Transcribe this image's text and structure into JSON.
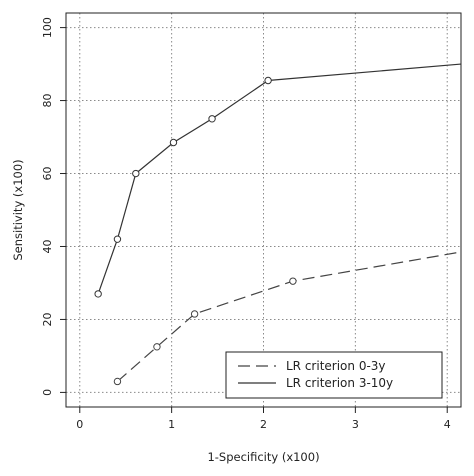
{
  "chart_data": {
    "type": "line",
    "title": "",
    "xlabel": "1-Specificity (x100)",
    "ylabel": "Sensitivity (x100)",
    "xlim": [
      -0.15,
      4.15
    ],
    "ylim": [
      -4,
      104
    ],
    "xticks": [
      0,
      1,
      2,
      3,
      4
    ],
    "xtick_labels": [
      "0",
      "1",
      "2",
      "3",
      "4"
    ],
    "yticks": [
      0,
      20,
      40,
      60,
      80,
      100
    ],
    "ytick_labels": [
      "0",
      "20",
      "40",
      "60",
      "80",
      "100"
    ],
    "grid": true,
    "legend_position": "bottom-right",
    "series": [
      {
        "name": "LR criterion 0-3y",
        "line_style": "dashed",
        "color": "#444444",
        "x": [
          0.41,
          0.84,
          1.25,
          2.32,
          4.15
        ],
        "y": [
          3,
          12.5,
          21.5,
          30.5,
          38.5
        ],
        "markers": [
          true,
          true,
          true,
          true,
          false
        ]
      },
      {
        "name": "LR criterion 3-10y",
        "line_style": "solid",
        "color": "#333333",
        "x": [
          0.2,
          0.41,
          0.61,
          1.02,
          1.44,
          2.05,
          4.15
        ],
        "y": [
          27,
          42,
          60,
          68.5,
          75,
          85.5,
          90
        ],
        "markers": [
          true,
          true,
          true,
          true,
          true,
          true,
          false
        ]
      }
    ]
  }
}
